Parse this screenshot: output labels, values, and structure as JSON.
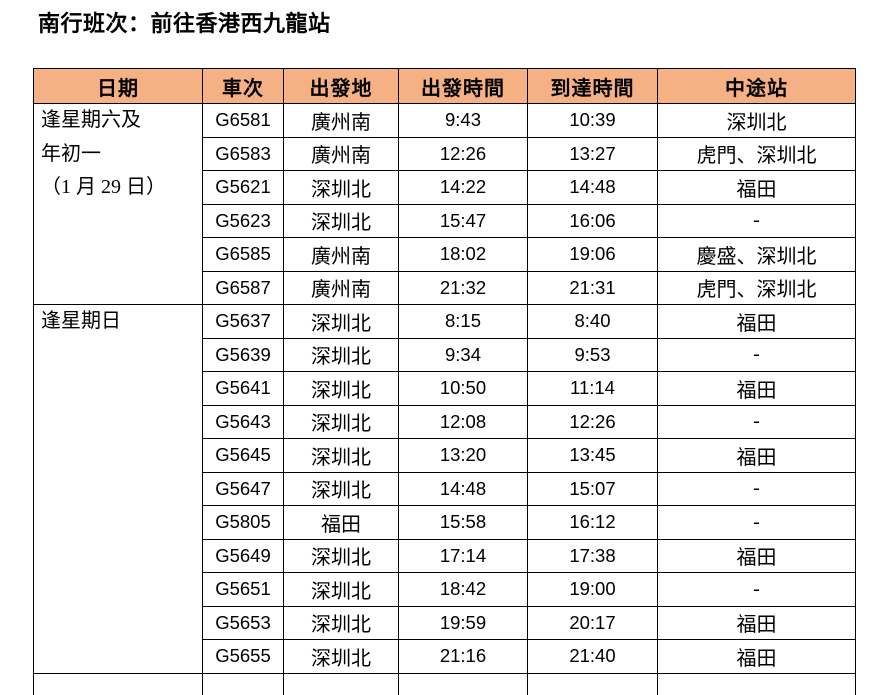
{
  "title": "南行班次：前往香港西九龍站",
  "colors": {
    "header_bg": "#F5B183",
    "border": "#000000",
    "text": "#000000"
  },
  "table": {
    "headers": [
      "日期",
      "車次",
      "出發地",
      "出發時間",
      "到達時間",
      "中途站"
    ],
    "groups": [
      {
        "date_lines": [
          "逢星期六及",
          "年初一",
          "（1 月 29 日）"
        ],
        "rows": [
          {
            "train": "G6581",
            "from": "廣州南",
            "depart": "9:43",
            "arrive": "10:39",
            "via": "深圳北"
          },
          {
            "train": "G6583",
            "from": "廣州南",
            "depart": "12:26",
            "arrive": "13:27",
            "via": "虎門、深圳北"
          },
          {
            "train": "G5621",
            "from": "深圳北",
            "depart": "14:22",
            "arrive": "14:48",
            "via": "福田"
          },
          {
            "train": "G5623",
            "from": "深圳北",
            "depart": "15:47",
            "arrive": "16:06",
            "via": "-"
          },
          {
            "train": "G6585",
            "from": "廣州南",
            "depart": "18:02",
            "arrive": "19:06",
            "via": "慶盛、深圳北"
          },
          {
            "train": "G6587",
            "from": "廣州南",
            "depart": "21:32",
            "arrive": "21:31",
            "via": "虎門、深圳北"
          }
        ]
      },
      {
        "date_lines": [
          "逢星期日"
        ],
        "rows": [
          {
            "train": "G5637",
            "from": "深圳北",
            "depart": "8:15",
            "arrive": "8:40",
            "via": "福田"
          },
          {
            "train": "G5639",
            "from": "深圳北",
            "depart": "9:34",
            "arrive": "9:53",
            "via": "-"
          },
          {
            "train": "G5641",
            "from": "深圳北",
            "depart": "10:50",
            "arrive": "11:14",
            "via": "福田"
          },
          {
            "train": "G5643",
            "from": "深圳北",
            "depart": "12:08",
            "arrive": "12:26",
            "via": "-"
          },
          {
            "train": "G5645",
            "from": "深圳北",
            "depart": "13:20",
            "arrive": "13:45",
            "via": "福田"
          },
          {
            "train": "G5647",
            "from": "深圳北",
            "depart": "14:48",
            "arrive": "15:07",
            "via": "-"
          },
          {
            "train": "G5805",
            "from": "福田",
            "depart": "15:58",
            "arrive": "16:12",
            "via": "-"
          },
          {
            "train": "G5649",
            "from": "深圳北",
            "depart": "17:14",
            "arrive": "17:38",
            "via": "福田"
          },
          {
            "train": "G5651",
            "from": "深圳北",
            "depart": "18:42",
            "arrive": "19:00",
            "via": "-"
          },
          {
            "train": "G5653",
            "from": "深圳北",
            "depart": "19:59",
            "arrive": "20:17",
            "via": "福田"
          },
          {
            "train": "G5655",
            "from": "深圳北",
            "depart": "21:16",
            "arrive": "21:40",
            "via": "福田"
          }
        ]
      }
    ]
  }
}
